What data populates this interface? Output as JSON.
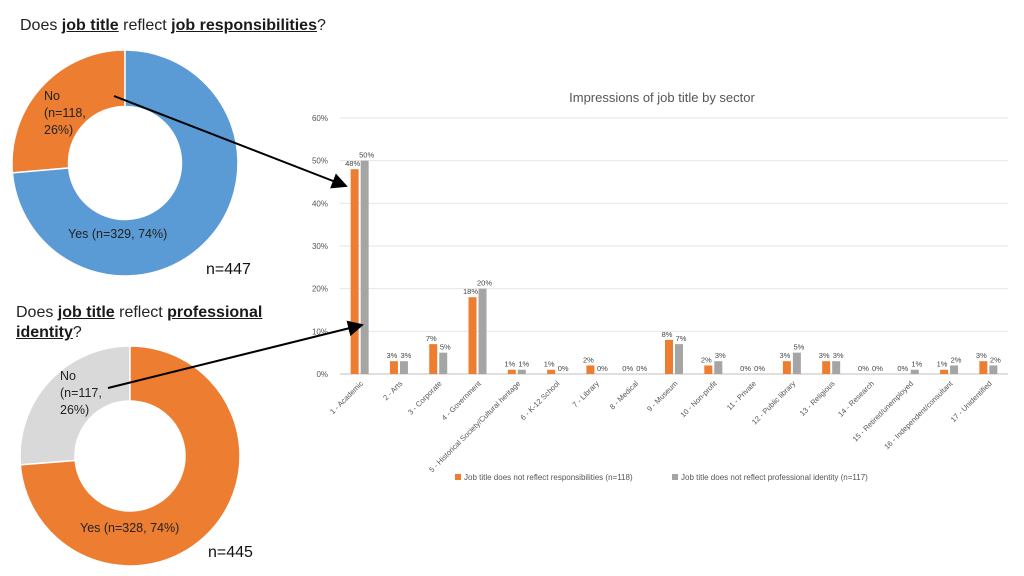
{
  "question1": {
    "prefix": "Does ",
    "term1": "job title",
    "middle": " reflect ",
    "term2": "job responsibilities",
    "suffix": "?"
  },
  "question2": {
    "prefix": "Does ",
    "term1": "job title",
    "middle": " reflect ",
    "term2": "professional identity",
    "suffix": "?"
  },
  "donut1": {
    "no_line1": "No",
    "no_line2": "(n=118,",
    "no_line3": "26%)",
    "yes_label": "Yes (n=329, 74%)",
    "n_label": "n=447"
  },
  "donut2": {
    "no_line1": "No",
    "no_line2": "(n=117,",
    "no_line3": "26%)",
    "yes_label": "Yes (n=328, 74%)",
    "n_label": "n=445"
  },
  "colors": {
    "orange": "#ED7D31",
    "blue": "#5B9BD5",
    "gray": "#A5A5A5",
    "lightgray": "#D9D9D9"
  },
  "chart_data": [
    {
      "type": "pie",
      "title": "Does job title reflect job responsibilities?",
      "categories": [
        "No",
        "Yes"
      ],
      "values": [
        118,
        329
      ],
      "percent": [
        26,
        74
      ],
      "colors": [
        "#ED7D31",
        "#5B9BD5"
      ],
      "total": "n=447"
    },
    {
      "type": "pie",
      "title": "Does job title reflect professional identity?",
      "categories": [
        "No",
        "Yes"
      ],
      "values": [
        117,
        328
      ],
      "percent": [
        26,
        74
      ],
      "colors": [
        "#D9D9D9",
        "#ED7D31"
      ],
      "total": "n=445"
    },
    {
      "type": "bar",
      "title": "Impressions of job title by sector",
      "categories": [
        "1 - Academic",
        "2 - Arts",
        "3 - Corporate",
        "4 - Government",
        "5 - Historical Society/Cultural heritage",
        "6 - K-12 School",
        "7 - Library",
        "8 - Medical",
        "9 - Museum",
        "10 - Non-profit",
        "11 - Private",
        "12 - Public library",
        "13 - Religious",
        "14 - Research",
        "15 - Retired/unemployed",
        "16 - Independent/consultant",
        "17 - Unidentified"
      ],
      "series": [
        {
          "name": "Job title does not reflect responsibilities (n=118)",
          "color": "#ED7D31",
          "values": [
            48,
            3,
            7,
            18,
            1,
            1,
            2,
            0,
            8,
            2,
            0,
            3,
            3,
            0,
            0,
            1,
            3
          ],
          "labels": [
            "48%",
            "3%",
            "7%",
            "18%",
            "1%",
            "1%",
            "2%",
            "0%",
            "8%",
            "2%",
            "0%",
            "3%",
            "3%",
            "0%",
            "0%",
            "1%",
            "3%"
          ]
        },
        {
          "name": "Job title does not reflect professional identity (n=117)",
          "color": "#A5A5A5",
          "values": [
            50,
            3,
            5,
            20,
            1,
            0,
            0,
            0,
            7,
            3,
            0,
            5,
            3,
            0,
            1,
            2,
            2
          ],
          "labels": [
            "50%",
            "3%",
            "5%",
            "20%",
            "1%",
            "0%",
            "0%",
            "0%",
            "7%",
            "3%",
            "0%",
            "5%",
            "3%",
            "0%",
            "1%",
            "2%",
            "2%"
          ]
        }
      ],
      "ylim": [
        0,
        60
      ],
      "yticks": [
        "0%",
        "10%",
        "20%",
        "30%",
        "40%",
        "50%",
        "60%"
      ],
      "grid": true,
      "legend": "bottom"
    }
  ]
}
